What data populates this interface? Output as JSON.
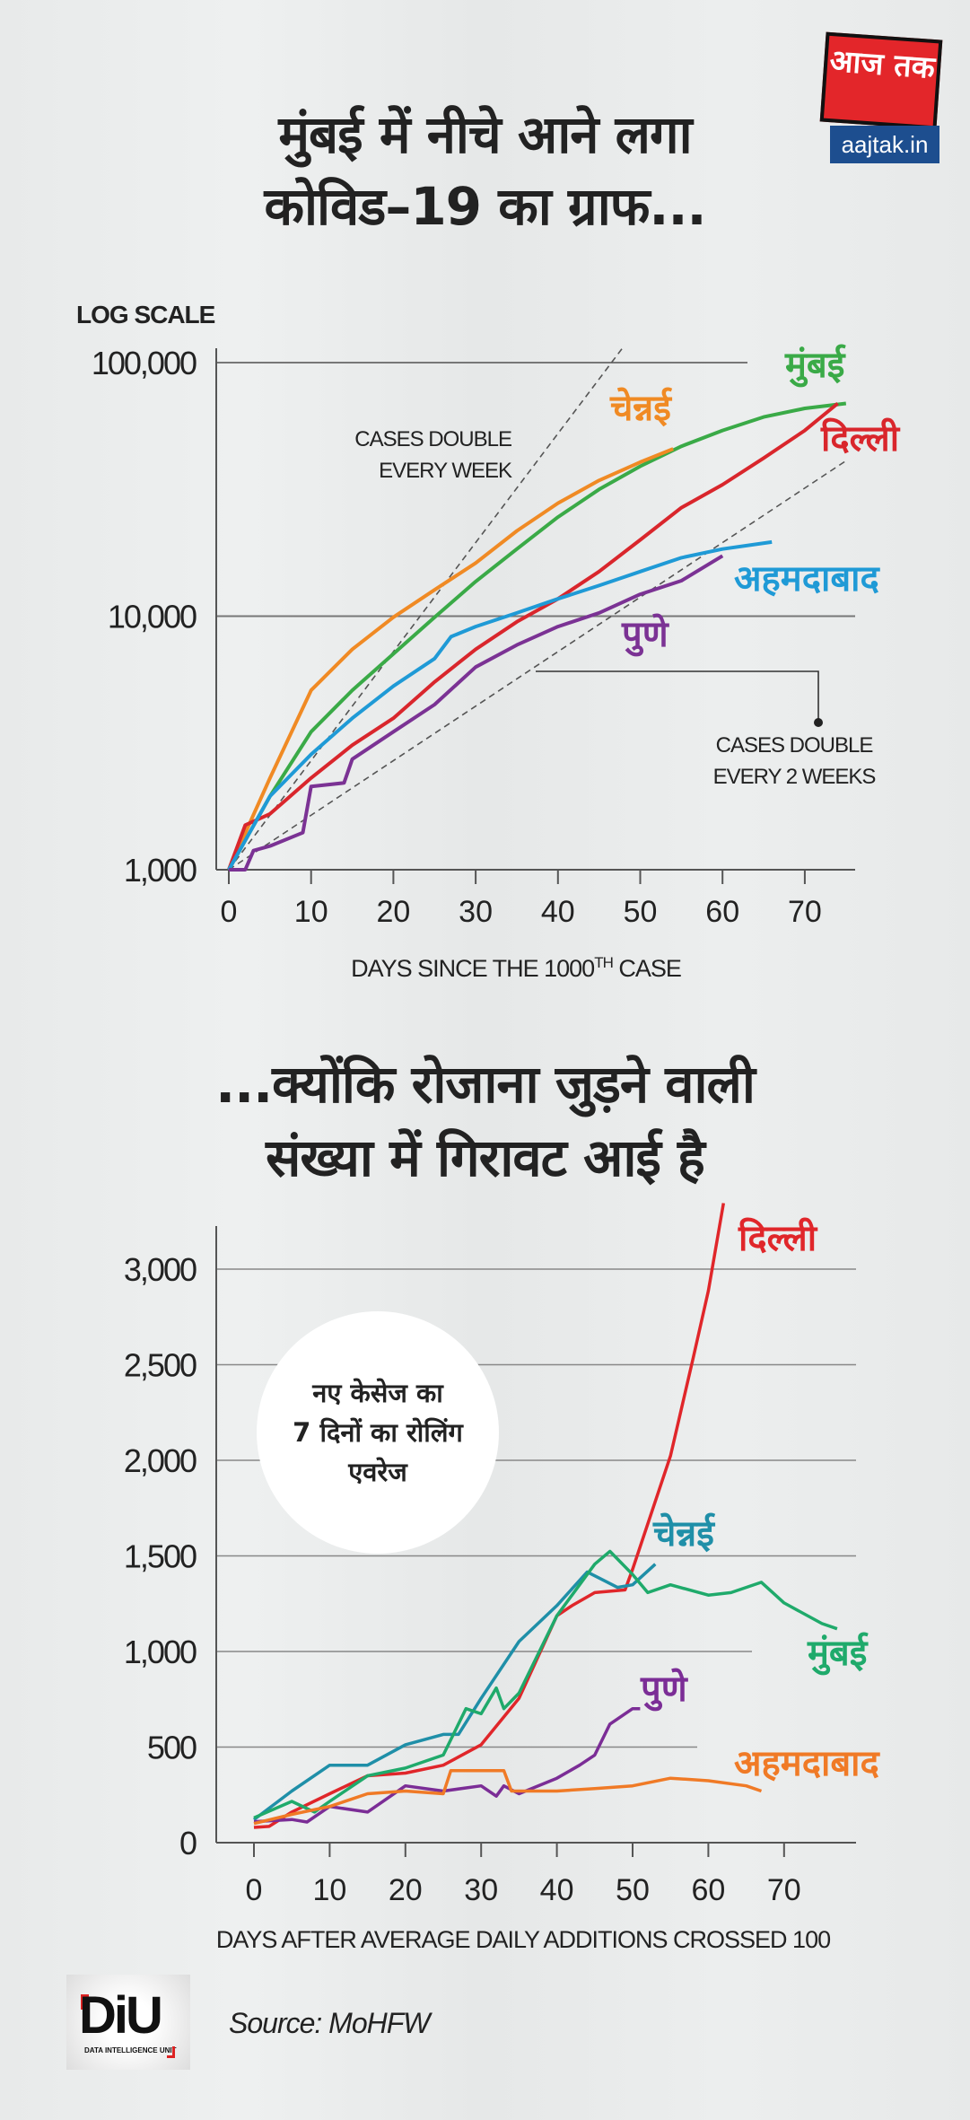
{
  "header": {
    "title_line1": "मुंबई में नीचे आने लगा",
    "title_line2": "कोविड–19 का ग्राफ...",
    "logo_text": "आज तक",
    "logo_url_text": "aajtak.in"
  },
  "section2": {
    "title_line1": "...क्योंकि रोजाना जुड़ने वाली",
    "title_line2": "संख्या में गिरावट आई है",
    "bubble_lines": [
      "नए केसेज का",
      "7 दिनों का रोलिंग",
      "एवरेज"
    ]
  },
  "footer": {
    "logo_text": "DiU",
    "logo_subtext": "DATA INTELLIGENCE UNIT",
    "source": "Source: MoHFW"
  },
  "chart_data": [
    {
      "type": "line",
      "title": "",
      "scale_label": "LOG SCALE",
      "xlabel": "DAYS SINCE THE 1000",
      "xlabel_sup": "TH",
      "xlabel_suffix": " CASE",
      "ylabel": "",
      "y_scale": "log",
      "ylim": [
        1000,
        100000
      ],
      "xlim": [
        0,
        75
      ],
      "x_ticks": [
        0,
        10,
        20,
        30,
        40,
        50,
        60,
        70
      ],
      "y_ticks": [
        1000,
        10000,
        100000
      ],
      "y_tick_labels": [
        "1,000",
        "10,000",
        "100,000"
      ],
      "grid": true,
      "annotations": [
        {
          "lines": [
            "CASES DOUBLE",
            "EVERY WEEK"
          ],
          "doubling_days": 7
        },
        {
          "lines": [
            "CASES DOUBLE",
            "EVERY 2 WEEKS"
          ],
          "doubling_days": 14
        }
      ],
      "series": [
        {
          "name": "मुंबई",
          "color": "#3aaa47",
          "points": [
            [
              0,
              1000
            ],
            [
              5,
              1950
            ],
            [
              10,
              3500
            ],
            [
              15,
              5100
            ],
            [
              20,
              7100
            ],
            [
              25,
              9900
            ],
            [
              30,
              13700
            ],
            [
              35,
              18400
            ],
            [
              40,
              24600
            ],
            [
              45,
              31600
            ],
            [
              50,
              39000
            ],
            [
              55,
              46800
            ],
            [
              60,
              54000
            ],
            [
              65,
              61000
            ],
            [
              70,
              66000
            ],
            [
              75,
              69000
            ]
          ]
        },
        {
          "name": "चेन्नई",
          "color": "#f08a24",
          "points": [
            [
              0,
              1000
            ],
            [
              5,
              2300
            ],
            [
              10,
              5100
            ],
            [
              15,
              7400
            ],
            [
              20,
              9900
            ],
            [
              25,
              12700
            ],
            [
              30,
              16200
            ],
            [
              35,
              21700
            ],
            [
              40,
              27900
            ],
            [
              45,
              34300
            ],
            [
              50,
              40500
            ],
            [
              54,
              45700
            ]
          ]
        },
        {
          "name": "दिल्ली",
          "color": "#d9262c",
          "points": [
            [
              0,
              1000
            ],
            [
              2,
              1500
            ],
            [
              5,
              1660
            ],
            [
              10,
              2300
            ],
            [
              15,
              3100
            ],
            [
              20,
              3960
            ],
            [
              25,
              5500
            ],
            [
              30,
              7400
            ],
            [
              35,
              9500
            ],
            [
              40,
              11700
            ],
            [
              45,
              15000
            ],
            [
              50,
              20000
            ],
            [
              55,
              26800
            ],
            [
              60,
              33000
            ],
            [
              65,
              42000
            ],
            [
              70,
              54000
            ],
            [
              74,
              69000
            ]
          ]
        },
        {
          "name": "अहमदाबाद",
          "color": "#1f9ad6",
          "points": [
            [
              0,
              1000
            ],
            [
              5,
              1950
            ],
            [
              10,
              2850
            ],
            [
              15,
              3960
            ],
            [
              20,
              5300
            ],
            [
              25,
              6800
            ],
            [
              27,
              8300
            ],
            [
              30,
              9100
            ],
            [
              35,
              10300
            ],
            [
              40,
              11700
            ],
            [
              45,
              13200
            ],
            [
              50,
              15000
            ],
            [
              55,
              17000
            ],
            [
              60,
              18400
            ],
            [
              66,
              19600
            ]
          ]
        },
        {
          "name": "पुणे",
          "color": "#7b3294",
          "points": [
            [
              0,
              1000
            ],
            [
              2,
              1000
            ],
            [
              3,
              1190
            ],
            [
              5,
              1240
            ],
            [
              9,
              1400
            ],
            [
              10,
              2130
            ],
            [
              14,
              2200
            ],
            [
              15,
              2730
            ],
            [
              20,
              3500
            ],
            [
              25,
              4480
            ],
            [
              30,
              6300
            ],
            [
              35,
              7700
            ],
            [
              40,
              9100
            ],
            [
              45,
              10300
            ],
            [
              50,
              12200
            ],
            [
              55,
              13800
            ],
            [
              60,
              17300
            ]
          ]
        }
      ]
    },
    {
      "type": "line",
      "title": "",
      "xlabel": "DAYS AFTER AVERAGE DAILY ADDITIONS CROSSED 100",
      "ylabel": "",
      "ylim": [
        0,
        3200
      ],
      "xlim": [
        0,
        78
      ],
      "x_ticks": [
        0,
        10,
        20,
        30,
        40,
        50,
        60,
        70
      ],
      "y_ticks": [
        0,
        500,
        1000,
        1500,
        2000,
        2500,
        3000
      ],
      "y_tick_labels": [
        "0",
        "500",
        "1,000",
        "1,500",
        "2,000",
        "2,500",
        "3,000"
      ],
      "grid": true,
      "series": [
        {
          "name": "दिल्ली",
          "color": "#e0262a",
          "points": [
            [
              0,
              80
            ],
            [
              2,
              85
            ],
            [
              5,
              160
            ],
            [
              10,
              256
            ],
            [
              15,
              350
            ],
            [
              20,
              364
            ],
            [
              25,
              405
            ],
            [
              30,
              512
            ],
            [
              35,
              755
            ],
            [
              40,
              1187
            ],
            [
              42,
              1240
            ],
            [
              45,
              1308
            ],
            [
              49,
              1322
            ],
            [
              50,
              1430
            ],
            [
              55,
              2023
            ],
            [
              58,
              2535
            ],
            [
              60,
              2886
            ],
            [
              62,
              3345
            ]
          ]
        },
        {
          "name": "चेन्नई",
          "color": "#1f8fa8",
          "points": [
            [
              0,
              120
            ],
            [
              5,
              270
            ],
            [
              10,
              405
            ],
            [
              15,
              405
            ],
            [
              20,
              512
            ],
            [
              25,
              566
            ],
            [
              27,
              566
            ],
            [
              30,
              755
            ],
            [
              35,
              1052
            ],
            [
              40,
              1240
            ],
            [
              44,
              1416
            ],
            [
              46,
              1376
            ],
            [
              48,
              1335
            ],
            [
              50,
              1349
            ],
            [
              53,
              1457
            ]
          ]
        },
        {
          "name": "मुंबई",
          "color": "#1faa6b",
          "points": [
            [
              0,
              130
            ],
            [
              5,
              216
            ],
            [
              8,
              160
            ],
            [
              10,
              216
            ],
            [
              15,
              350
            ],
            [
              20,
              390
            ],
            [
              25,
              458
            ],
            [
              28,
              701
            ],
            [
              30,
              674
            ],
            [
              32,
              809
            ],
            [
              33,
              701
            ],
            [
              35,
              782
            ],
            [
              40,
              1187
            ],
            [
              45,
              1457
            ],
            [
              47,
              1524
            ],
            [
              50,
              1403
            ],
            [
              52,
              1308
            ],
            [
              55,
              1349
            ],
            [
              60,
              1295
            ],
            [
              63,
              1308
            ],
            [
              67,
              1362
            ],
            [
              70,
              1254
            ],
            [
              75,
              1146
            ],
            [
              77,
              1119
            ]
          ]
        },
        {
          "name": "पुणे",
          "color": "#7b2d96",
          "points": [
            [
              0,
              110
            ],
            [
              5,
              121
            ],
            [
              7,
              108
            ],
            [
              10,
              189
            ],
            [
              15,
              160
            ],
            [
              20,
              297
            ],
            [
              25,
              270
            ],
            [
              30,
              297
            ],
            [
              32,
              243
            ],
            [
              33,
              297
            ],
            [
              35,
              256
            ],
            [
              40,
              337
            ],
            [
              43,
              405
            ],
            [
              45,
              458
            ],
            [
              47,
              620
            ],
            [
              50,
              701
            ],
            [
              51,
              701
            ]
          ]
        },
        {
          "name": "अहमदाबाद",
          "color": "#f07a26",
          "points": [
            [
              0,
              100
            ],
            [
              5,
              148
            ],
            [
              10,
              189
            ],
            [
              15,
              256
            ],
            [
              20,
              270
            ],
            [
              25,
              256
            ],
            [
              26,
              377
            ],
            [
              30,
              377
            ],
            [
              33,
              377
            ],
            [
              34,
              270
            ],
            [
              40,
              270
            ],
            [
              45,
              283
            ],
            [
              50,
              297
            ],
            [
              55,
              337
            ],
            [
              60,
              324
            ],
            [
              65,
              297
            ],
            [
              67,
              270
            ]
          ]
        }
      ]
    }
  ]
}
